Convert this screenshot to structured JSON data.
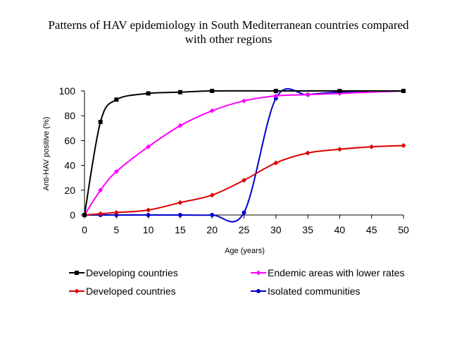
{
  "chart_data": {
    "type": "line",
    "title_line1": "Patterns of HAV epidemiology in South Mediterranean countries compared",
    "title_line2": "with other regions",
    "xlabel": "Age (years)",
    "ylabel": "Anti-HAV positive (%)",
    "xlim": [
      0,
      50
    ],
    "ylim": [
      0,
      100
    ],
    "xticks": [
      0,
      5,
      10,
      15,
      20,
      25,
      30,
      35,
      40,
      45,
      50
    ],
    "yticks": [
      0,
      20,
      40,
      60,
      80,
      100
    ],
    "grid": false,
    "legend_position": "bottom",
    "series": [
      {
        "name": "Developing countries",
        "color": "#000000",
        "marker": "square",
        "x": [
          0,
          2.5,
          5,
          10,
          15,
          20,
          30,
          40,
          50
        ],
        "y": [
          0,
          75,
          93,
          98,
          99,
          100,
          100,
          100,
          100
        ]
      },
      {
        "name": "Endemic areas with lower rates",
        "color": "#ff00ff",
        "marker": "diamond",
        "x": [
          0,
          2.5,
          5,
          10,
          15,
          20,
          25,
          30,
          35,
          40,
          50
        ],
        "y": [
          0,
          20,
          35,
          55,
          72,
          84,
          92,
          96,
          97,
          98,
          100
        ]
      },
      {
        "name": "Developed countries",
        "color": "#dd0000",
        "marker": "diamond",
        "x": [
          0,
          2.5,
          5,
          10,
          15,
          20,
          25,
          30,
          35,
          40,
          45,
          50
        ],
        "y": [
          0,
          1,
          2,
          4,
          10,
          16,
          28,
          42,
          50,
          53,
          55,
          56
        ]
      },
      {
        "name": "Isolated communities",
        "color": "#0000cc",
        "marker": "circle",
        "x": [
          0,
          2.5,
          5,
          10,
          15,
          20,
          25,
          30,
          35,
          40,
          50
        ],
        "y": [
          0,
          0,
          0,
          0,
          0,
          0,
          2,
          94,
          97,
          99,
          100
        ]
      }
    ]
  }
}
